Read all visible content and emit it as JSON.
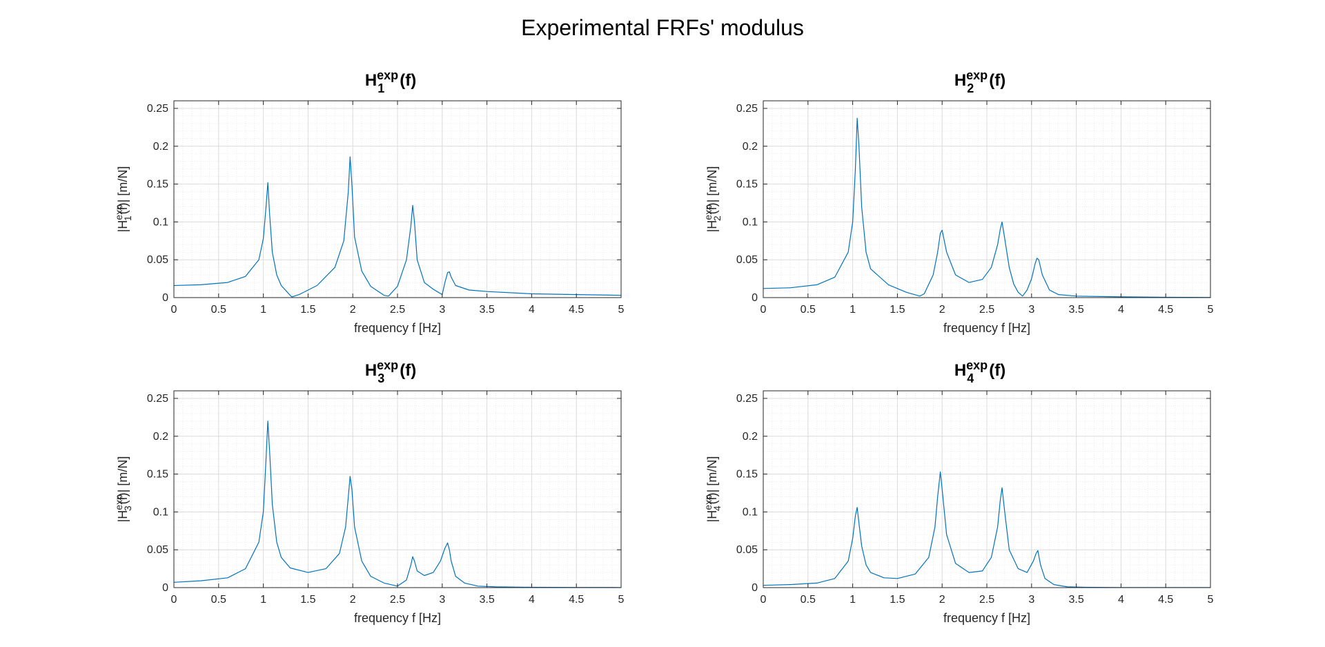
{
  "figure": {
    "title": "Experimental FRFs' modulus",
    "line_color": "#0072BD",
    "grid_color": "#e6e6e6"
  },
  "chart_data": [
    {
      "type": "line",
      "title": "H1exp(f)",
      "title_parts": {
        "base": "H",
        "sub": "1",
        "sup": "exp",
        "arg": "(f)"
      },
      "xlabel": "frequency f [Hz]",
      "ylabel": "|H1exp(f)|   [m/N]",
      "ylabel_parts": {
        "pre": "|H",
        "sub": "1",
        "sup": "exp",
        "post": "(f)|   [m/N]"
      },
      "xlim": [
        0,
        5
      ],
      "ylim": [
        0,
        0.26
      ],
      "xticks": [
        0,
        0.5,
        1,
        1.5,
        2,
        2.5,
        3,
        3.5,
        4,
        4.5,
        5
      ],
      "xtick_labels": [
        "0",
        "0.5",
        "1",
        "1.5",
        "2",
        "2.5",
        "3",
        "3.5",
        "4",
        "4.5",
        "5"
      ],
      "yticks": [
        0,
        0.05,
        0.1,
        0.15,
        0.2,
        0.25
      ],
      "ytick_labels": [
        "0",
        "0.05",
        "0.1",
        "0.15",
        "0.2",
        "0.25"
      ],
      "grid": "on (major and minor)",
      "series": [
        {
          "x": [
            0,
            0.3,
            0.6,
            0.8,
            0.95,
            1.0,
            1.03,
            1.05,
            1.07,
            1.1,
            1.15,
            1.2,
            1.3,
            1.32,
            1.4,
            1.6,
            1.8,
            1.9,
            1.95,
            1.97,
            1.99,
            2.02,
            2.1,
            2.2,
            2.35,
            2.4,
            2.5,
            2.6,
            2.65,
            2.67,
            2.69,
            2.72,
            2.8,
            2.9,
            3.0,
            3.03,
            3.06,
            3.08,
            3.1,
            3.15,
            3.3,
            3.5,
            4.0,
            4.5,
            5.0
          ],
          "y": [
            0.016,
            0.017,
            0.02,
            0.028,
            0.05,
            0.078,
            0.12,
            0.152,
            0.11,
            0.06,
            0.03,
            0.016,
            0.003,
            0.001,
            0.004,
            0.016,
            0.04,
            0.075,
            0.14,
            0.186,
            0.15,
            0.08,
            0.035,
            0.015,
            0.003,
            0.002,
            0.015,
            0.05,
            0.095,
            0.122,
            0.1,
            0.05,
            0.02,
            0.011,
            0.004,
            0.02,
            0.033,
            0.034,
            0.027,
            0.016,
            0.01,
            0.008,
            0.005,
            0.004,
            0.003
          ]
        }
      ]
    },
    {
      "type": "line",
      "title": "H2exp(f)",
      "title_parts": {
        "base": "H",
        "sub": "2",
        "sup": "exp",
        "arg": "(f)"
      },
      "xlabel": "frequency f [Hz]",
      "ylabel": "|H2exp(f)|   [m/N]",
      "ylabel_parts": {
        "pre": "|H",
        "sub": "2",
        "sup": "exp",
        "post": "(f)|   [m/N]"
      },
      "xlim": [
        0,
        5
      ],
      "ylim": [
        0,
        0.26
      ],
      "xticks": [
        0,
        0.5,
        1,
        1.5,
        2,
        2.5,
        3,
        3.5,
        4,
        4.5,
        5
      ],
      "xtick_labels": [
        "0",
        "0.5",
        "1",
        "1.5",
        "2",
        "2.5",
        "3",
        "3.5",
        "4",
        "4.5",
        "5"
      ],
      "yticks": [
        0,
        0.05,
        0.1,
        0.15,
        0.2,
        0.25
      ],
      "ytick_labels": [
        "0",
        "0.05",
        "0.1",
        "0.15",
        "0.2",
        "0.25"
      ],
      "grid": "on (major and minor)",
      "series": [
        {
          "x": [
            0,
            0.3,
            0.6,
            0.8,
            0.95,
            1.0,
            1.03,
            1.05,
            1.07,
            1.1,
            1.15,
            1.2,
            1.4,
            1.6,
            1.75,
            1.8,
            1.9,
            1.95,
            1.98,
            2.0,
            2.05,
            2.15,
            2.3,
            2.45,
            2.55,
            2.62,
            2.65,
            2.67,
            2.7,
            2.75,
            2.8,
            2.85,
            2.9,
            2.95,
            3.0,
            3.04,
            3.06,
            3.08,
            3.12,
            3.2,
            3.3,
            3.5,
            4.0,
            4.5,
            5.0
          ],
          "y": [
            0.012,
            0.013,
            0.017,
            0.027,
            0.06,
            0.1,
            0.17,
            0.237,
            0.2,
            0.12,
            0.06,
            0.038,
            0.017,
            0.007,
            0.002,
            0.005,
            0.03,
            0.06,
            0.085,
            0.089,
            0.06,
            0.03,
            0.02,
            0.024,
            0.04,
            0.07,
            0.09,
            0.1,
            0.078,
            0.04,
            0.018,
            0.007,
            0.002,
            0.01,
            0.025,
            0.045,
            0.052,
            0.05,
            0.03,
            0.01,
            0.004,
            0.002,
            0.001,
            0.0005,
            0.0003
          ]
        }
      ]
    },
    {
      "type": "line",
      "title": "H3exp(f)",
      "title_parts": {
        "base": "H",
        "sub": "3",
        "sup": "exp",
        "arg": "(f)"
      },
      "xlabel": "frequency f [Hz]",
      "ylabel": "|H3exp(f)|   [m/N]",
      "ylabel_parts": {
        "pre": "|H",
        "sub": "3",
        "sup": "exp",
        "post": "(f)|   [m/N]"
      },
      "xlim": [
        0,
        5
      ],
      "ylim": [
        0,
        0.26
      ],
      "xticks": [
        0,
        0.5,
        1,
        1.5,
        2,
        2.5,
        3,
        3.5,
        4,
        4.5,
        5
      ],
      "xtick_labels": [
        "0",
        "0.5",
        "1",
        "1.5",
        "2",
        "2.5",
        "3",
        "3.5",
        "4",
        "4.5",
        "5"
      ],
      "yticks": [
        0,
        0.05,
        0.1,
        0.15,
        0.2,
        0.25
      ],
      "ytick_labels": [
        "0",
        "0.05",
        "0.1",
        "0.15",
        "0.2",
        "0.25"
      ],
      "grid": "on (major and minor)",
      "series": [
        {
          "x": [
            0,
            0.3,
            0.6,
            0.8,
            0.95,
            1.0,
            1.03,
            1.05,
            1.07,
            1.1,
            1.15,
            1.2,
            1.3,
            1.5,
            1.7,
            1.85,
            1.92,
            1.95,
            1.97,
            1.99,
            2.02,
            2.1,
            2.2,
            2.35,
            2.5,
            2.6,
            2.65,
            2.67,
            2.69,
            2.72,
            2.8,
            2.9,
            2.98,
            3.03,
            3.06,
            3.08,
            3.1,
            3.15,
            3.25,
            3.4,
            3.6,
            4.0,
            4.5,
            5.0
          ],
          "y": [
            0.007,
            0.009,
            0.013,
            0.025,
            0.06,
            0.1,
            0.17,
            0.22,
            0.18,
            0.11,
            0.06,
            0.04,
            0.026,
            0.02,
            0.025,
            0.045,
            0.08,
            0.12,
            0.147,
            0.13,
            0.08,
            0.035,
            0.015,
            0.006,
            0.002,
            0.01,
            0.03,
            0.041,
            0.035,
            0.022,
            0.016,
            0.02,
            0.035,
            0.052,
            0.059,
            0.05,
            0.035,
            0.015,
            0.006,
            0.002,
            0.001,
            0.0005,
            0.0003,
            0.0002
          ]
        }
      ]
    },
    {
      "type": "line",
      "title": "H4exp(f)",
      "title_parts": {
        "base": "H",
        "sub": "4",
        "sup": "exp",
        "arg": "(f)"
      },
      "xlabel": "frequency f [Hz]",
      "ylabel": "|H4exp(f)|   [m/N]",
      "ylabel_parts": {
        "pre": "|H",
        "sub": "4",
        "sup": "exp",
        "post": "(f)|   [m/N]"
      },
      "xlim": [
        0,
        5
      ],
      "ylim": [
        0,
        0.26
      ],
      "xticks": [
        0,
        0.5,
        1,
        1.5,
        2,
        2.5,
        3,
        3.5,
        4,
        4.5,
        5
      ],
      "xtick_labels": [
        "0",
        "0.5",
        "1",
        "1.5",
        "2",
        "2.5",
        "3",
        "3.5",
        "4",
        "4.5",
        "5"
      ],
      "yticks": [
        0,
        0.05,
        0.1,
        0.15,
        0.2,
        0.25
      ],
      "ytick_labels": [
        "0",
        "0.05",
        "0.1",
        "0.15",
        "0.2",
        "0.25"
      ],
      "grid": "on (major and minor)",
      "series": [
        {
          "x": [
            0,
            0.3,
            0.6,
            0.8,
            0.95,
            1.0,
            1.03,
            1.05,
            1.07,
            1.1,
            1.15,
            1.2,
            1.35,
            1.5,
            1.7,
            1.85,
            1.92,
            1.95,
            1.98,
            2.0,
            2.05,
            2.15,
            2.3,
            2.45,
            2.55,
            2.62,
            2.65,
            2.67,
            2.7,
            2.75,
            2.85,
            2.95,
            3.02,
            3.05,
            3.07,
            3.1,
            3.15,
            3.25,
            3.4,
            3.6,
            4.0,
            4.5,
            5.0
          ],
          "y": [
            0.003,
            0.004,
            0.006,
            0.012,
            0.035,
            0.065,
            0.095,
            0.106,
            0.085,
            0.055,
            0.03,
            0.02,
            0.013,
            0.012,
            0.018,
            0.04,
            0.08,
            0.12,
            0.153,
            0.13,
            0.07,
            0.032,
            0.02,
            0.022,
            0.04,
            0.08,
            0.115,
            0.132,
            0.1,
            0.05,
            0.025,
            0.02,
            0.035,
            0.045,
            0.049,
            0.03,
            0.012,
            0.004,
            0.001,
            0.0005,
            0.0002,
            0.0001,
            0.0001
          ]
        }
      ]
    }
  ]
}
